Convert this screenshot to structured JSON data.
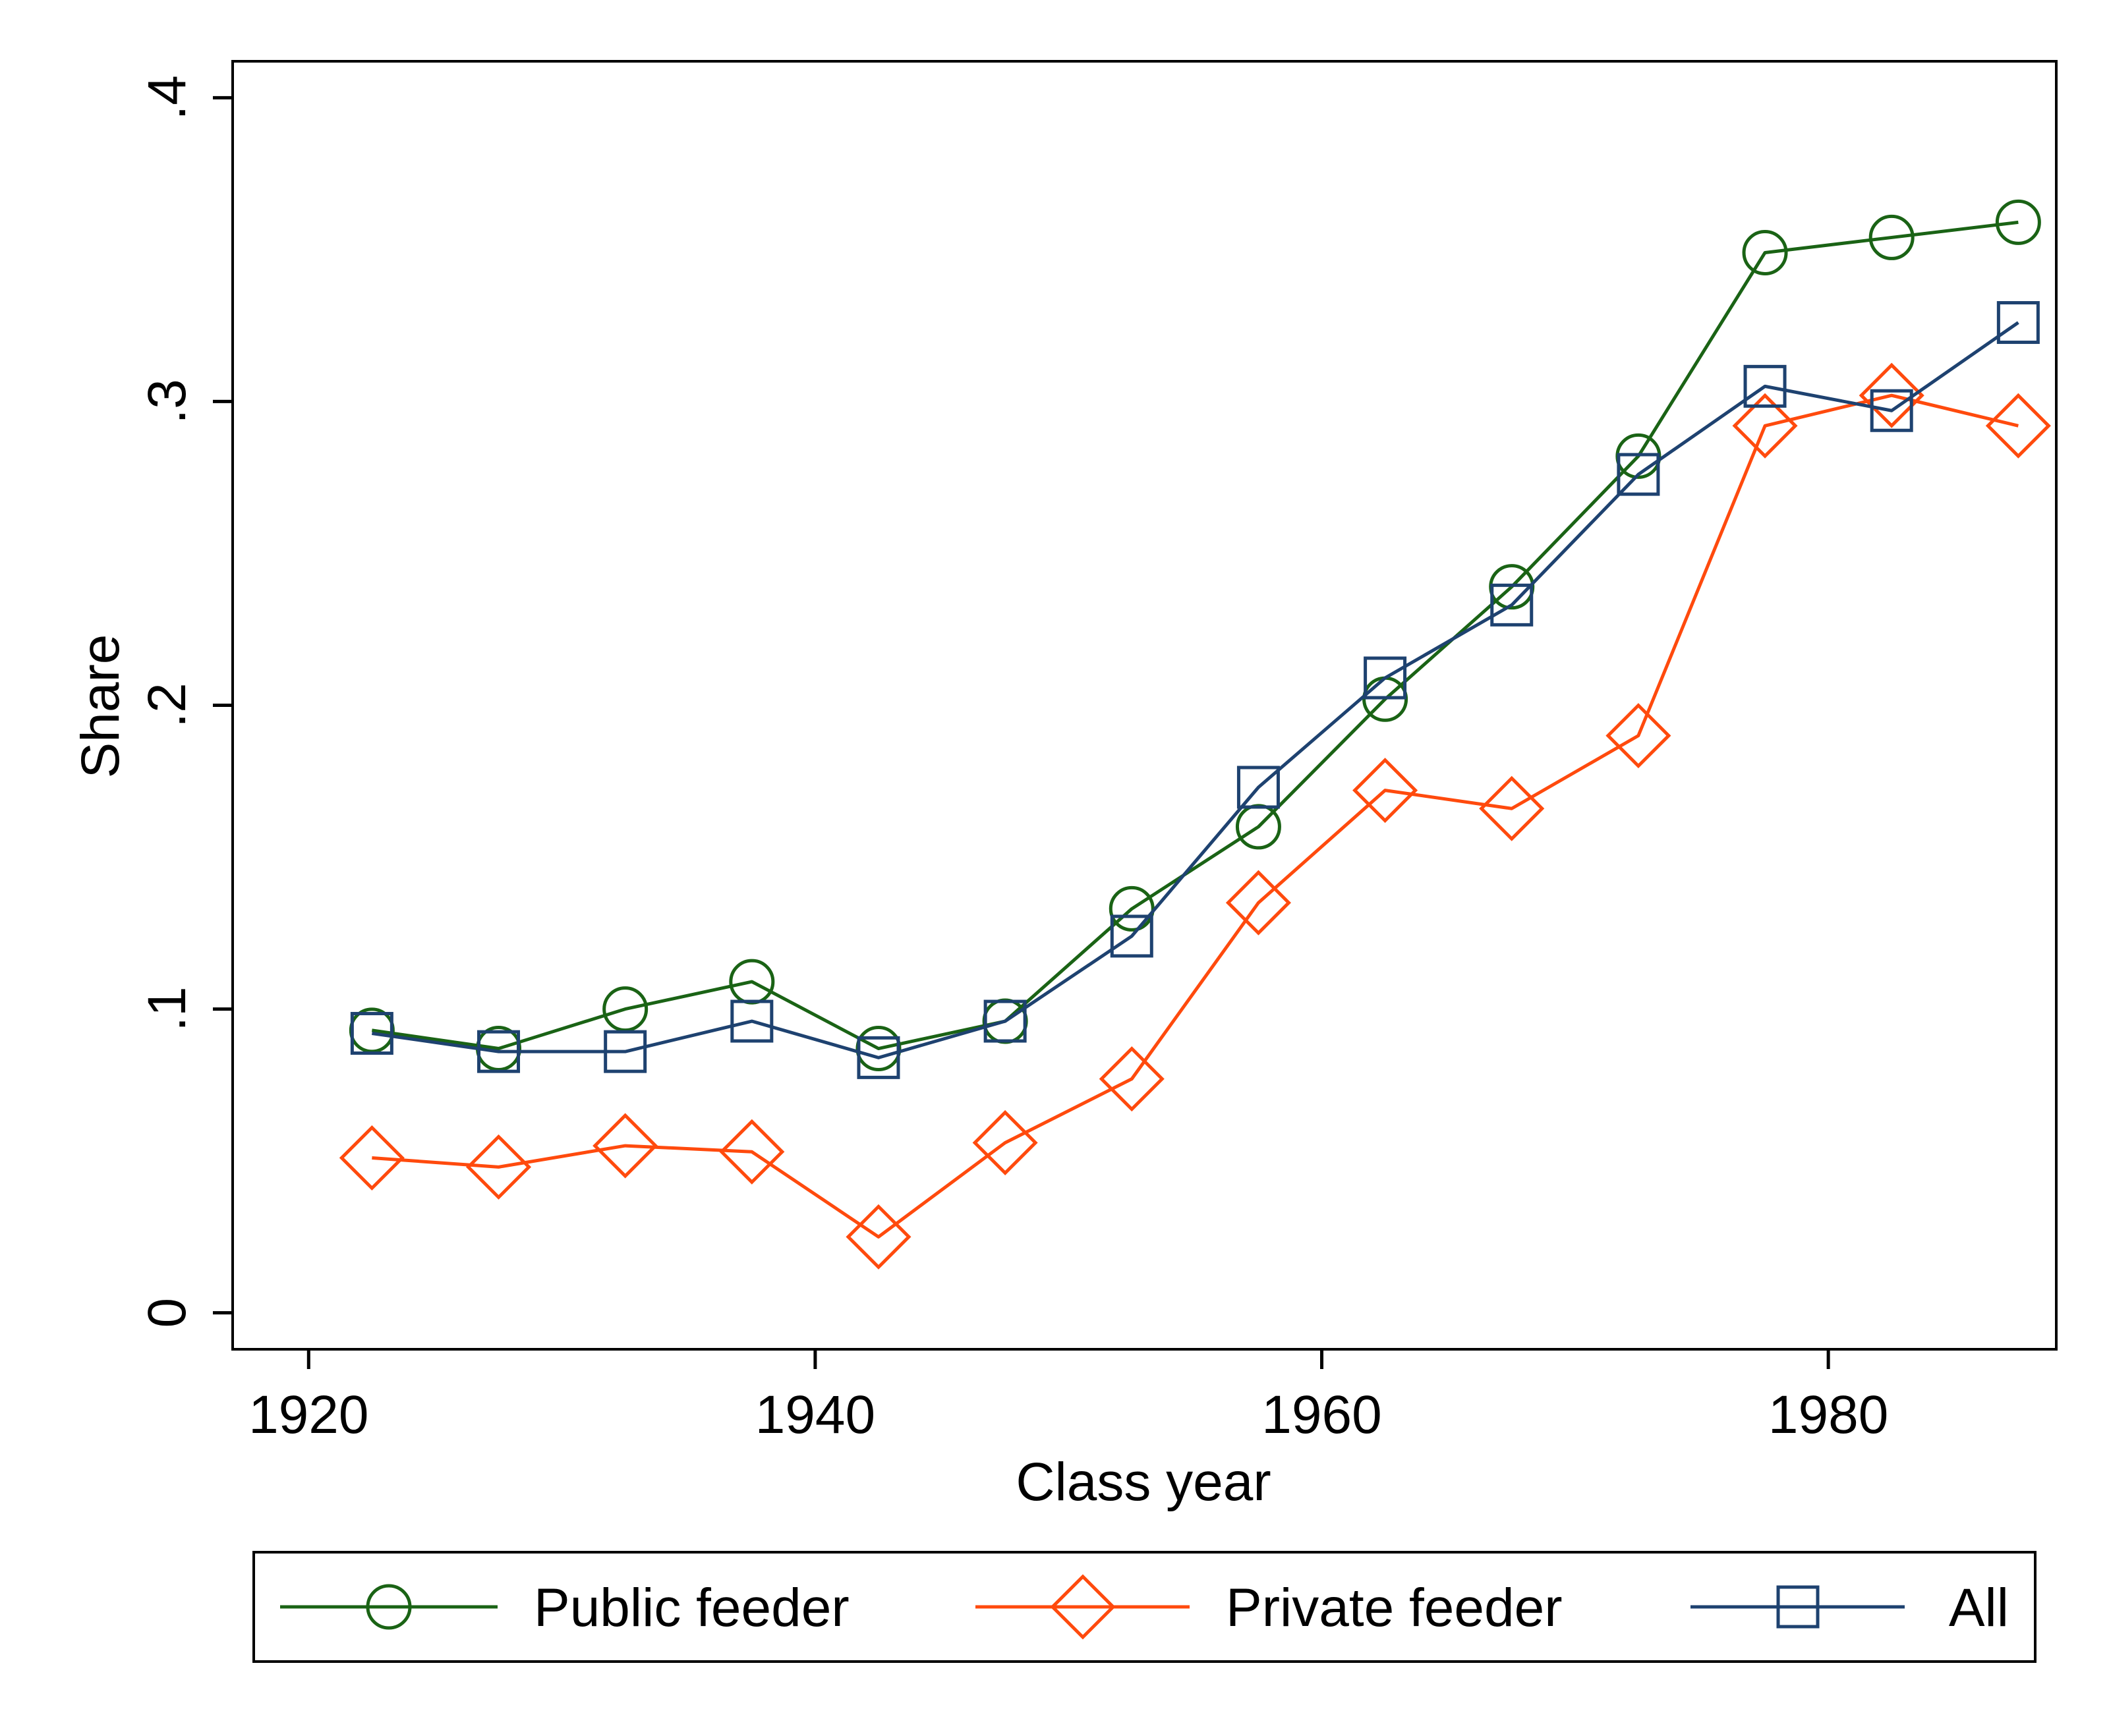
{
  "chart_data": {
    "type": "line",
    "xlabel": "Class year",
    "ylabel": "Share",
    "xlim": [
      1917,
      1989
    ],
    "ylim": [
      -0.012,
      0.412
    ],
    "x_ticks": [
      1920,
      1940,
      1960,
      1980
    ],
    "x_tick_labels": [
      "1920",
      "1940",
      "1960",
      "1980"
    ],
    "y_ticks": [
      0,
      0.1,
      0.2,
      0.3,
      0.4
    ],
    "y_tick_labels": [
      "0",
      ".1",
      ".2",
      ".3",
      ".4"
    ],
    "grid": false,
    "legend_position": "bottom",
    "x": [
      1922.5,
      1927.5,
      1932.5,
      1937.5,
      1942.5,
      1947.5,
      1952.5,
      1957.5,
      1962.5,
      1967.5,
      1972.5,
      1977.5,
      1982.5,
      1987.5
    ],
    "series": [
      {
        "name": "Public feeder",
        "color": "#1a6315",
        "marker": "circle",
        "values": [
          0.093,
          0.087,
          0.1,
          0.109,
          0.087,
          0.096,
          0.133,
          0.16,
          0.202,
          0.239,
          0.282,
          0.349,
          0.354,
          0.359
        ]
      },
      {
        "name": "Private feeder",
        "color": "#ff4a0d",
        "marker": "diamond",
        "values": [
          0.051,
          0.048,
          0.055,
          0.053,
          0.025,
          0.056,
          0.077,
          0.135,
          0.172,
          0.166,
          0.19,
          0.292,
          0.302,
          0.292
        ]
      },
      {
        "name": "All",
        "color": "#1e4270",
        "marker": "square",
        "values": [
          0.092,
          0.086,
          0.086,
          0.096,
          0.084,
          0.096,
          0.124,
          0.173,
          0.209,
          0.233,
          0.276,
          0.305,
          0.297,
          0.326
        ]
      }
    ]
  }
}
